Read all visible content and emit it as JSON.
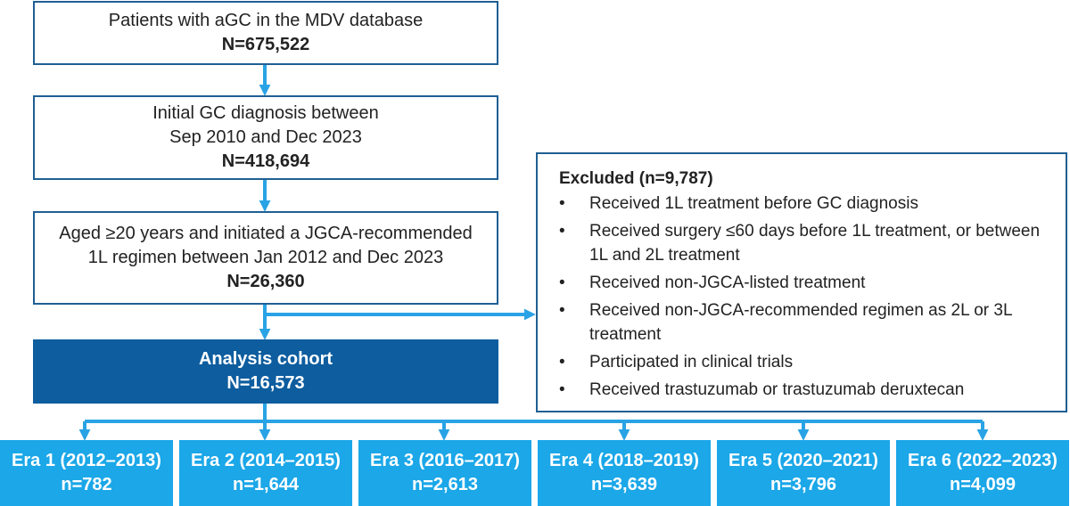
{
  "flow": {
    "box1": {
      "line1": "Patients with aGC in the MDV database",
      "count": "N=675,522"
    },
    "box2": {
      "line1": "Initial GC diagnosis between",
      "line2": "Sep 2010 and Dec 2023",
      "count": "N=418,694"
    },
    "box3": {
      "line1": "Aged ≥20 years and initiated a JGCA-recommended",
      "line2": "1L regimen between Jan 2012 and Dec 2023",
      "count": "N=26,360"
    },
    "cohort": {
      "title": "Analysis cohort",
      "count": "N=16,573"
    }
  },
  "excluded": {
    "title": "Excluded (n=9,787)",
    "bullet": "•",
    "items": [
      "Received 1L treatment before GC diagnosis",
      "Received surgery ≤60 days before 1L treatment, or between 1L and 2L treatment",
      "Received non-JGCA-listed treatment",
      "Received non-JGCA-recommended regimen as 2L or 3L treatment",
      "Participated in clinical trials",
      "Received trastuzumab or trastuzumab deruxtecan"
    ]
  },
  "eras": [
    {
      "label": "Era 1 (2012–2013)",
      "count": "n=782"
    },
    {
      "label": "Era 2 (2014–2015)",
      "count": "n=1,644"
    },
    {
      "label": "Era 3 (2016–2017)",
      "count": "n=2,613"
    },
    {
      "label": "Era 4 (2018–2019)",
      "count": "n=3,639"
    },
    {
      "label": "Era 5 (2020–2021)",
      "count": "n=3,796"
    },
    {
      "label": "Era 6 (2022–2023)",
      "count": "n=4,099"
    }
  ],
  "colors": {
    "box_border": "#1f5f93",
    "cohort_fill": "#0d5d9f",
    "era_fill": "#1ba7e8",
    "arrow": "#29a3e5"
  }
}
